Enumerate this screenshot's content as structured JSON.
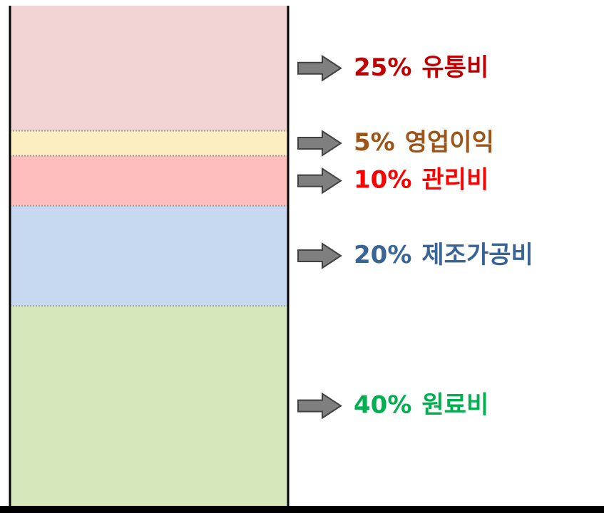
{
  "chart_data": {
    "type": "bar",
    "stacked": true,
    "ylim": [
      0,
      100
    ],
    "series": [
      {
        "name": "원료비",
        "values": [
          40
        ],
        "value_labels": [
          "40%"
        ],
        "color": "#d5e8bc",
        "label_color": "#00b050"
      },
      {
        "name": "제조가공비",
        "values": [
          20
        ],
        "value_labels": [
          "20%"
        ],
        "color": "#c6d9f0",
        "label_color": "#3a6495"
      },
      {
        "name": "관리비",
        "values": [
          10
        ],
        "value_labels": [
          "10%"
        ],
        "color": "#ffbebe",
        "label_color": "#ff0000"
      },
      {
        "name": "영업이익",
        "values": [
          5
        ],
        "value_labels": [
          "5%"
        ],
        "color": "#fdeec1",
        "label_color": "#9c5418"
      },
      {
        "name": "유통비",
        "values": [
          25
        ],
        "value_labels": [
          "25%"
        ],
        "color": "#f1d3d3",
        "label_color": "#c00000"
      }
    ]
  }
}
